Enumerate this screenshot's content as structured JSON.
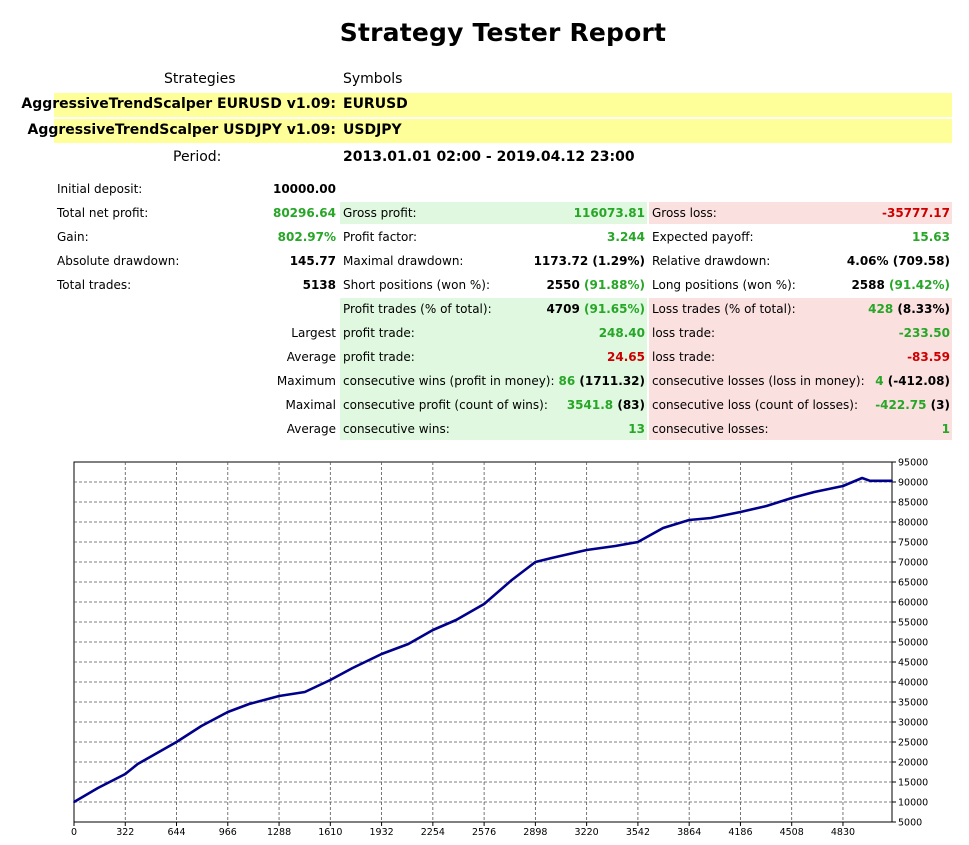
{
  "report": {
    "title": "Strategy Tester Report",
    "strategies_header": "Strategies",
    "symbols_header": "Symbols",
    "strategies": [
      {
        "name": "AggressiveTrendScalper EURUSD v1.09:",
        "symbol": "EURUSD"
      },
      {
        "name": "AggressiveTrendScalper USDJPY v1.09:",
        "symbol": "USDJPY"
      }
    ],
    "period_label": "Period:",
    "period_value": "2013.01.01 02:00 - 2019.04.12 23:00"
  },
  "stats": {
    "initial_deposit_label": "Initial deposit:",
    "initial_deposit_value": "10000.00",
    "total_net_profit_label": "Total net profit:",
    "total_net_profit_value": "80296.64",
    "gain_label": "Gain:",
    "gain_value": "802.97%",
    "absolute_drawdown_label": "Absolute drawdown:",
    "absolute_drawdown_value": "145.77",
    "total_trades_label": "Total trades:",
    "total_trades_value": "5138",
    "gross_profit_label": "Gross profit:",
    "gross_profit_value": "116073.81",
    "profit_factor_label": "Profit factor:",
    "profit_factor_value": "3.244",
    "maximal_drawdown_label": "Maximal drawdown:",
    "maximal_drawdown_value": "1173.72 (1.29%)",
    "short_positions_label": "Short positions (won %):",
    "short_positions_value": "2550",
    "short_positions_pct": "(91.88%)",
    "profit_trades_label": "Profit trades (% of total):",
    "profit_trades_value": "4709",
    "profit_trades_pct": "(91.65%)",
    "gross_loss_label": "Gross loss:",
    "gross_loss_value": "-35777.17",
    "expected_payoff_label": "Expected payoff:",
    "expected_payoff_value": "15.63",
    "relative_drawdown_label": "Relative drawdown:",
    "relative_drawdown_value": "4.06% (709.58)",
    "long_positions_label": "Long positions (won %):",
    "long_positions_value": "2588",
    "long_positions_pct": "(91.42%)",
    "loss_trades_label": "Loss trades (% of total):",
    "loss_trades_value": "428",
    "loss_trades_pct": "(8.33%)",
    "largest_label": "Largest",
    "largest_profit_label": "profit trade:",
    "largest_profit_value": "248.40",
    "largest_loss_label": "loss trade:",
    "largest_loss_value": "-233.50",
    "average_label": "Average",
    "average_profit_label": "profit trade:",
    "average_profit_value": "24.65",
    "average_loss_label": "loss trade:",
    "average_loss_value": "-83.59",
    "maximum_label": "Maximum",
    "max_cons_wins_label": "consecutive wins (profit in money):",
    "max_cons_wins_value": "86",
    "max_cons_wins_money": "(1711.32)",
    "max_cons_losses_label": "consecutive losses (loss in money):",
    "max_cons_losses_value": "4",
    "max_cons_losses_money": "(-412.08)",
    "maximal_label": "Maximal",
    "maximal_cons_profit_label": "consecutive profit (count of wins):",
    "maximal_cons_profit_value": "3541.8",
    "maximal_cons_profit_count": "(83)",
    "maximal_cons_loss_label": "consecutive loss (count of losses):",
    "maximal_cons_loss_value": "-422.75",
    "maximal_cons_loss_count": "(3)",
    "average2_label": "Average",
    "avg_cons_wins_label": "consecutive wins:",
    "avg_cons_wins_value": "13",
    "avg_cons_losses_label": "consecutive losses:",
    "avg_cons_losses_value": "1"
  },
  "colors": {
    "strategy_row_bg": "#ffff99",
    "profit_cell_bg": "#dff8df",
    "loss_cell_bg": "#fbe0e0",
    "green_text": "#27a627",
    "red_text": "#cc0000",
    "equity_line": "#00008b"
  },
  "chart_data": {
    "type": "line",
    "title": "",
    "xlabel": "",
    "ylabel": "",
    "grid": true,
    "xlim": [
      0,
      5138
    ],
    "ylim": [
      5000,
      95000
    ],
    "x_ticks": [
      "0",
      "322",
      "644",
      "966",
      "1288",
      "1610",
      "1932",
      "2254",
      "2576",
      "2898",
      "3220",
      "3542",
      "3864",
      "4186",
      "4508",
      "4830"
    ],
    "y_ticks": [
      "95000",
      "90000",
      "85000",
      "80000",
      "75000",
      "70000",
      "65000",
      "60000",
      "55000",
      "50000",
      "45000",
      "40000",
      "35000",
      "30000",
      "25000",
      "20000",
      "15000",
      "10000",
      "5000"
    ],
    "series": [
      {
        "name": "",
        "x": [
          0,
          150,
          322,
          400,
          644,
          800,
          966,
          1100,
          1288,
          1450,
          1610,
          1750,
          1932,
          2100,
          2254,
          2400,
          2576,
          2750,
          2898,
          3000,
          3220,
          3400,
          3542,
          3700,
          3864,
          4000,
          4186,
          4350,
          4508,
          4650,
          4830,
          4950,
          5000,
          5138
        ],
        "y": [
          10000,
          13500,
          17000,
          19500,
          25000,
          29000,
          32500,
          34500,
          36500,
          37500,
          40500,
          43500,
          47000,
          49500,
          53000,
          55500,
          59500,
          65500,
          70000,
          71000,
          73000,
          74000,
          75000,
          78500,
          80500,
          81000,
          82500,
          84000,
          86000,
          87500,
          89000,
          91000,
          90300,
          90300
        ]
      }
    ]
  }
}
